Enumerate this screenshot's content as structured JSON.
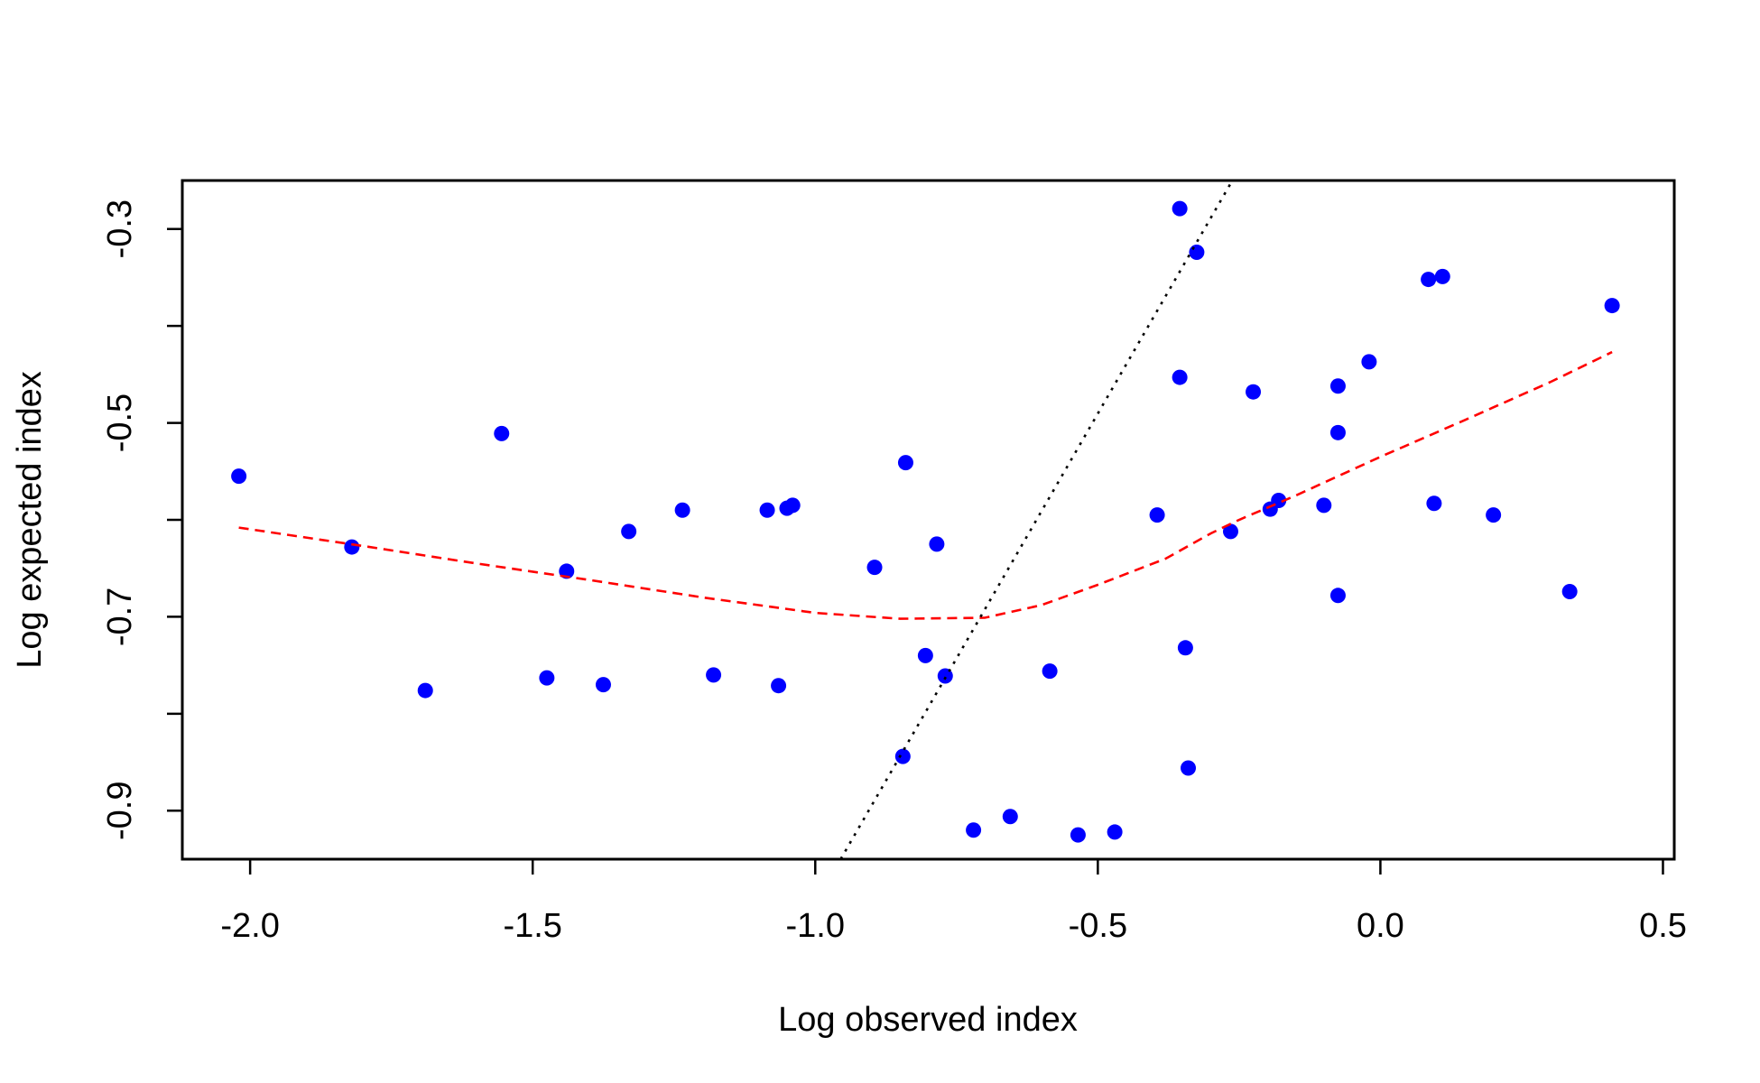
{
  "chart_data": {
    "type": "scatter",
    "title": "",
    "xlabel": "Log observed index",
    "ylabel": "Log expected index",
    "xlim": [
      -2.12,
      0.52
    ],
    "ylim": [
      -0.95,
      -0.25
    ],
    "x_ticks": [
      -2.0,
      -1.5,
      -1.0,
      -0.5,
      0.0,
      0.5
    ],
    "x_tick_labels": [
      "-2.0",
      "-1.5",
      "-1.0",
      "-0.5",
      "0.0",
      "0.5"
    ],
    "y_ticks": [
      -0.9,
      -0.8,
      -0.7,
      -0.6,
      -0.5,
      -0.4,
      -0.3
    ],
    "y_tick_labels": [
      "-0.9",
      "",
      "-0.7",
      "",
      "-0.5",
      "",
      "-0.3"
    ],
    "grid": false,
    "colors": {
      "points": "#0000ff",
      "smooth": "#ff0000",
      "reference": "#000000",
      "frame": "#000000"
    },
    "series": [
      {
        "style": "points",
        "points": [
          [
            -2.02,
            -0.555
          ],
          [
            -1.82,
            -0.628
          ],
          [
            -1.69,
            -0.776
          ],
          [
            -1.555,
            -0.511
          ],
          [
            -1.475,
            -0.763
          ],
          [
            -1.44,
            -0.653
          ],
          [
            -1.375,
            -0.77
          ],
          [
            -1.33,
            -0.612
          ],
          [
            -1.235,
            -0.59
          ],
          [
            -1.18,
            -0.76
          ],
          [
            -1.085,
            -0.59
          ],
          [
            -1.065,
            -0.771
          ],
          [
            -1.05,
            -0.588
          ],
          [
            -1.04,
            -0.585
          ],
          [
            -0.895,
            -0.649
          ],
          [
            -0.84,
            -0.541
          ],
          [
            -0.845,
            -0.844
          ],
          [
            -0.805,
            -0.74
          ],
          [
            -0.785,
            -0.625
          ],
          [
            -0.77,
            -0.761
          ],
          [
            -0.72,
            -0.92
          ],
          [
            -0.655,
            -0.906
          ],
          [
            -0.585,
            -0.756
          ],
          [
            -0.535,
            -0.925
          ],
          [
            -0.47,
            -0.922
          ],
          [
            -0.395,
            -0.595
          ],
          [
            -0.355,
            -0.279
          ],
          [
            -0.355,
            -0.453
          ],
          [
            -0.345,
            -0.732
          ],
          [
            -0.34,
            -0.856
          ],
          [
            -0.325,
            -0.324
          ],
          [
            -0.265,
            -0.612
          ],
          [
            -0.225,
            -0.468
          ],
          [
            -0.195,
            -0.589
          ],
          [
            -0.18,
            -0.58
          ],
          [
            -0.1,
            -0.585
          ],
          [
            -0.075,
            -0.462
          ],
          [
            -0.075,
            -0.51
          ],
          [
            -0.075,
            -0.678
          ],
          [
            -0.02,
            -0.437
          ],
          [
            0.085,
            -0.352
          ],
          [
            0.095,
            -0.583
          ],
          [
            0.11,
            -0.349
          ],
          [
            0.2,
            -0.595
          ],
          [
            0.335,
            -0.674
          ],
          [
            0.41,
            -0.379
          ]
        ]
      },
      {
        "style": "dashed-line",
        "points": [
          [
            -2.02,
            -0.608
          ],
          [
            -1.8,
            -0.627
          ],
          [
            -1.6,
            -0.645
          ],
          [
            -1.4,
            -0.662
          ],
          [
            -1.2,
            -0.68
          ],
          [
            -1.0,
            -0.696
          ],
          [
            -0.85,
            -0.702
          ],
          [
            -0.7,
            -0.701
          ],
          [
            -0.6,
            -0.688
          ],
          [
            -0.5,
            -0.667
          ],
          [
            -0.38,
            -0.64
          ],
          [
            -0.3,
            -0.614
          ],
          [
            -0.25,
            -0.6
          ],
          [
            -0.15,
            -0.575
          ],
          [
            0.0,
            -0.535
          ],
          [
            0.15,
            -0.497
          ],
          [
            0.3,
            -0.458
          ],
          [
            0.41,
            -0.427
          ]
        ]
      },
      {
        "style": "dotted-line",
        "points": [
          [
            -0.955,
            -0.95
          ],
          [
            -0.262,
            -0.25
          ]
        ]
      }
    ]
  }
}
